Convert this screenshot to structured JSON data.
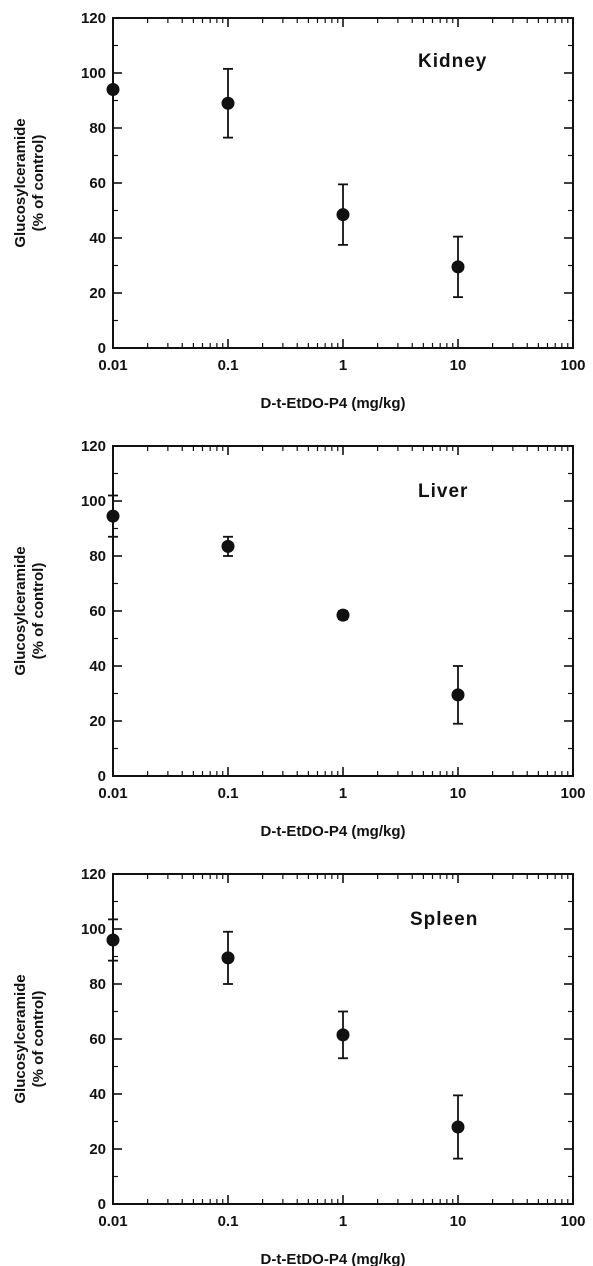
{
  "chart_data": [
    {
      "type": "scatter",
      "title": "",
      "panel_label": "Kidney",
      "xlabel": "D-t-EtDO-P4   (mg/kg)",
      "ylabel_lines": [
        "Glucosylceramide",
        "(% of control)"
      ],
      "x_scale": "log",
      "xlim": [
        0.01,
        100
      ],
      "ylim": [
        0,
        120
      ],
      "x_ticks": [
        0.01,
        0.1,
        1,
        10,
        100
      ],
      "x_tick_labels": [
        "0.01",
        "0.1",
        "1",
        "10",
        "100"
      ],
      "y_ticks": [
        0,
        20,
        40,
        60,
        80,
        100,
        120
      ],
      "y_tick_labels": [
        "0",
        "20",
        "40",
        "60",
        "80",
        "100",
        "120"
      ],
      "grid": false,
      "points": [
        {
          "x": 0.01,
          "y": 94,
          "err": 0
        },
        {
          "x": 0.1,
          "y": 89,
          "err": 12.5
        },
        {
          "x": 1,
          "y": 48.5,
          "err": 11
        },
        {
          "x": 10,
          "y": 29.5,
          "err": 11
        }
      ]
    },
    {
      "type": "scatter",
      "title": "",
      "panel_label": "Liver",
      "xlabel": "D-t-EtDO-P4   (mg/kg)",
      "ylabel_lines": [
        "Glucosylceramide",
        "(% of control)"
      ],
      "x_scale": "log",
      "xlim": [
        0.01,
        100
      ],
      "ylim": [
        0,
        120
      ],
      "x_ticks": [
        0.01,
        0.1,
        1,
        10,
        100
      ],
      "x_tick_labels": [
        "0.01",
        "0.1",
        "1",
        "10",
        "100"
      ],
      "y_ticks": [
        0,
        20,
        40,
        60,
        80,
        100,
        120
      ],
      "y_tick_labels": [
        "0",
        "20",
        "40",
        "60",
        "80",
        "100",
        "120"
      ],
      "grid": false,
      "points": [
        {
          "x": 0.01,
          "y": 94.5,
          "err": 7.5
        },
        {
          "x": 0.1,
          "y": 83.5,
          "err": 3.5
        },
        {
          "x": 1,
          "y": 58.5,
          "err": 1.5
        },
        {
          "x": 10,
          "y": 29.5,
          "err": 10.5
        }
      ]
    },
    {
      "type": "scatter",
      "title": "",
      "panel_label": "Spleen",
      "xlabel": "D-t-EtDO-P4   (mg/kg)",
      "ylabel_lines": [
        "Glucosylceramide",
        "(% of control)"
      ],
      "x_scale": "log",
      "xlim": [
        0.01,
        100
      ],
      "ylim": [
        0,
        120
      ],
      "x_ticks": [
        0.01,
        0.1,
        1,
        10,
        100
      ],
      "x_tick_labels": [
        "0.01",
        "0.1",
        "1",
        "10",
        "100"
      ],
      "y_ticks": [
        0,
        20,
        40,
        60,
        80,
        100,
        120
      ],
      "y_tick_labels": [
        "0",
        "20",
        "40",
        "60",
        "80",
        "100",
        "120"
      ],
      "grid": false,
      "points": [
        {
          "x": 0.01,
          "y": 96,
          "err": 7.5
        },
        {
          "x": 0.1,
          "y": 89.5,
          "err": 9.5
        },
        {
          "x": 1,
          "y": 61.5,
          "err": 8.5
        },
        {
          "x": 10,
          "y": 28,
          "err": 11.5
        }
      ]
    }
  ],
  "colors": {
    "ink": "#111111",
    "background": "#ffffff"
  }
}
